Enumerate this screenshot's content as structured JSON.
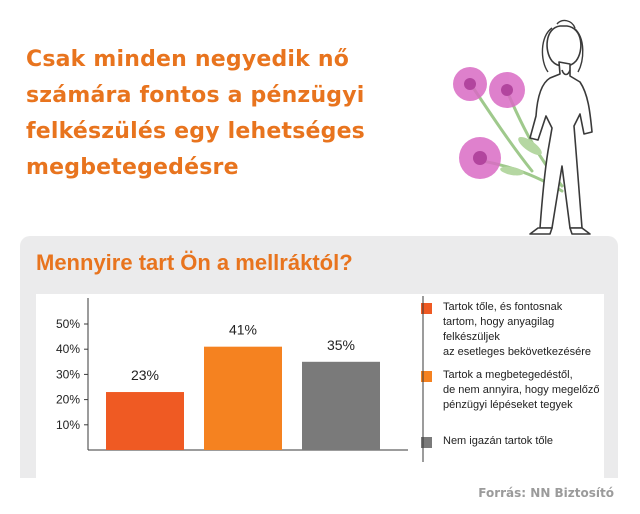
{
  "headline": "Csak minden negyedik nő számára fontos a pénzügyi felkészülés egy lehetséges megbetegedésre",
  "subtitle": "Mennyire tart Ön a mellráktól?",
  "source": "Forrás: NN Biztosító",
  "colors": {
    "accent": "#e8741e",
    "bar1": "#ef5a23",
    "bar2": "#f58220",
    "bar3": "#7a7a7a",
    "panel": "#ebebec"
  },
  "illustration": "woman-with-pink-flowers",
  "chart_data": {
    "type": "bar",
    "categories": [
      "Tartok tőle, és fontosnak tartom, hogy anyagilag felkészüljek az esetleges bekövetkezésére",
      "Tartok a megbetegedéstől, de nem annyira, hogy megelőző pénzügyi lépéseket tegyek",
      "Nem igazán tartok tőle"
    ],
    "values": [
      23,
      41,
      35
    ],
    "data_labels": [
      "23%",
      "41%",
      "35%"
    ],
    "yticks": [
      "10%",
      "20%",
      "30%",
      "40%",
      "50%"
    ],
    "ylim": [
      0,
      60
    ],
    "grid": false,
    "legend_position": "right"
  },
  "legend": [
    {
      "text": "Tartok tőle, és fontosnak\ntartom, hogy anyagilag felkészüljek\naz esetleges bekövetkezésére",
      "color": "#ef5a23"
    },
    {
      "text": "Tartok a megbetegedéstől,\nde nem annyira, hogy megelőző\npénzügyi lépéseket tegyek",
      "color": "#f58220"
    },
    {
      "text": "Nem igazán tartok tőle",
      "color": "#7a7a7a"
    }
  ]
}
